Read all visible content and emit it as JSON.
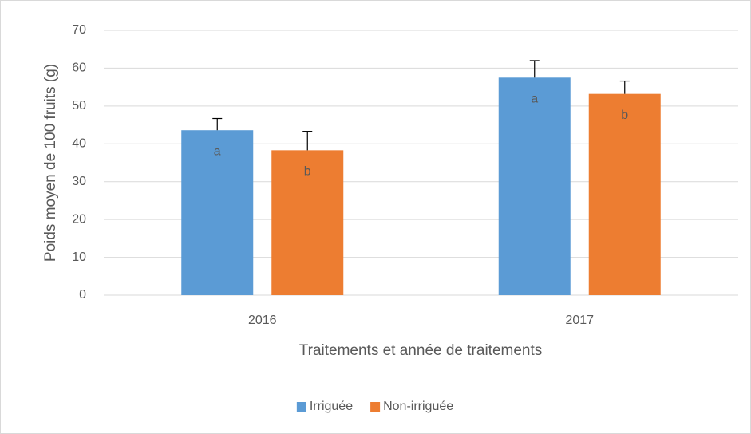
{
  "chart_data": {
    "type": "bar",
    "categories": [
      "2016",
      "2017"
    ],
    "series": [
      {
        "name": "Irriguée",
        "color": "#5b9bd5",
        "values": [
          43.6,
          57.5
        ],
        "errors": [
          3.1,
          4.5
        ],
        "letters": [
          "a",
          "a"
        ]
      },
      {
        "name": "Non-irriguée",
        "color": "#ed7d31",
        "values": [
          38.3,
          53.2
        ],
        "errors": [
          5.0,
          3.4
        ],
        "letters": [
          "b",
          "b"
        ]
      }
    ],
    "xlabel": "Traitements et année de traitements",
    "ylabel": "Poids moyen de 100 fruits (g)",
    "ylim": [
      0,
      70
    ],
    "yticks": [
      0,
      10,
      20,
      30,
      40,
      50,
      60,
      70
    ],
    "grid": true,
    "legend": "bottom"
  }
}
